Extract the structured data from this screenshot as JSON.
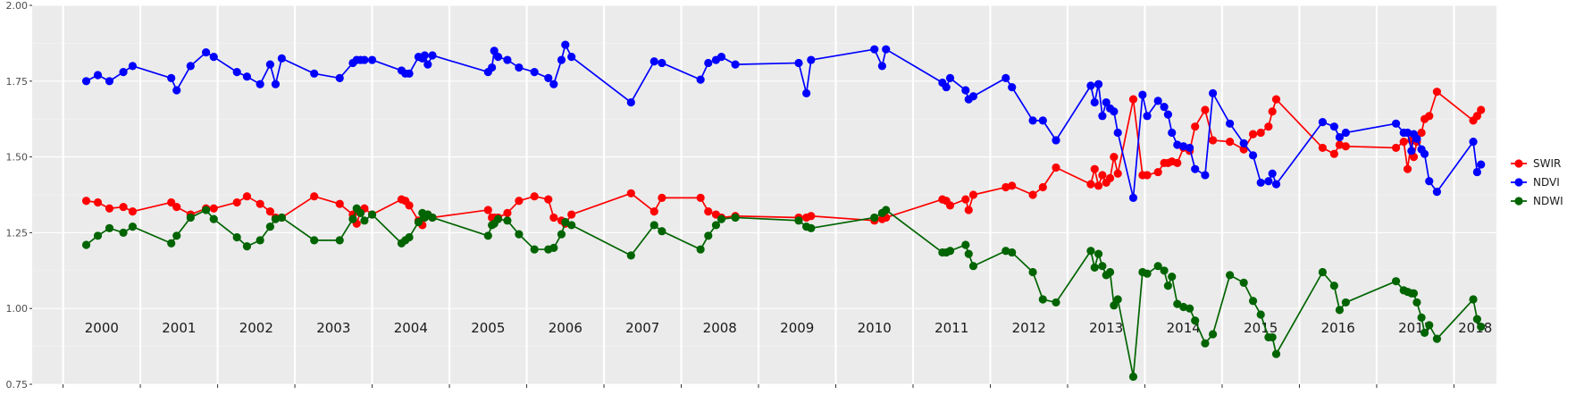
{
  "chart_data": {
    "type": "line",
    "title": "",
    "xlabel": "",
    "ylabel": "",
    "xlim": [
      1999.6,
      2018.55
    ],
    "ylim": [
      0.75,
      2.0
    ],
    "y_ticks": [
      "0.75",
      "1.00",
      "1.25",
      "1.50",
      "1.75",
      "2.00"
    ],
    "year_labels": [
      "2000",
      "2001",
      "2002",
      "2003",
      "2004",
      "2005",
      "2006",
      "2007",
      "2008",
      "2009",
      "2010",
      "2011",
      "2012",
      "2013",
      "2014",
      "2015",
      "2016",
      "2017",
      "2018"
    ],
    "grid": true,
    "legend_position": "right",
    "x": [
      2000.3,
      2000.45,
      2000.6,
      2000.78,
      2000.9,
      2001.4,
      2001.47,
      2001.65,
      2001.85,
      2001.95,
      2002.25,
      2002.38,
      2002.55,
      2002.68,
      2002.75,
      2002.83,
      2003.25,
      2003.58,
      2003.75,
      2003.8,
      2003.85,
      2003.9,
      2004.0,
      2004.38,
      2004.43,
      2004.48,
      2004.6,
      2004.65,
      2004.68,
      2004.72,
      2004.78,
      2005.5,
      2005.55,
      2005.58,
      2005.63,
      2005.75,
      2005.9,
      2006.1,
      2006.28,
      2006.35,
      2006.45,
      2006.5,
      2006.58,
      2007.35,
      2007.65,
      2007.75,
      2008.25,
      2008.35,
      2008.45,
      2008.52,
      2008.7,
      2009.52,
      2009.62,
      2009.68,
      2010.5,
      2010.6,
      2010.65,
      2011.38,
      2011.43,
      2011.48,
      2011.68,
      2011.72,
      2011.78,
      2012.2,
      2012.28,
      2012.55,
      2012.68,
      2012.85,
      2013.3,
      2013.35,
      2013.4,
      2013.45,
      2013.5,
      2013.55,
      2013.6,
      2013.65,
      2013.85,
      2013.97,
      2014.03,
      2014.17,
      2014.25,
      2014.3,
      2014.35,
      2014.42,
      2014.5,
      2014.58,
      2014.65,
      2014.78,
      2014.88,
      2015.1,
      2015.28,
      2015.4,
      2015.5,
      2015.6,
      2015.65,
      2015.7,
      2016.3,
      2016.45,
      2016.52,
      2016.6,
      2017.25,
      2017.35,
      2017.4,
      2017.45,
      2017.48,
      2017.52,
      2017.58,
      2017.62,
      2017.68,
      2017.78,
      2018.25,
      2018.3,
      2018.35
    ],
    "series": [
      {
        "name": "SWIR",
        "color": "#ff0000",
        "values": [
          1.355,
          1.35,
          1.33,
          1.335,
          1.32,
          1.35,
          1.335,
          1.31,
          1.33,
          1.33,
          1.35,
          1.37,
          1.345,
          1.32,
          1.3,
          1.3,
          1.37,
          1.345,
          1.31,
          1.28,
          1.32,
          1.33,
          1.31,
          1.36,
          1.355,
          1.34,
          1.29,
          1.275,
          1.305,
          1.31,
          1.3,
          1.325,
          1.3,
          1.3,
          1.3,
          1.315,
          1.355,
          1.37,
          1.36,
          1.3,
          1.29,
          1.28,
          1.31,
          1.38,
          1.32,
          1.365,
          1.365,
          1.32,
          1.31,
          1.3,
          1.305,
          1.3,
          1.3,
          1.305,
          1.29,
          1.295,
          1.3,
          1.36,
          1.355,
          1.34,
          1.36,
          1.325,
          1.375,
          1.4,
          1.405,
          1.375,
          1.4,
          1.465,
          1.41,
          1.46,
          1.405,
          1.44,
          1.415,
          1.43,
          1.5,
          1.445,
          1.69,
          1.44,
          1.44,
          1.45,
          1.48,
          1.48,
          1.485,
          1.48,
          1.53,
          1.52,
          1.6,
          1.655,
          1.555,
          1.55,
          1.525,
          1.575,
          1.58,
          1.6,
          1.65,
          1.69,
          1.53,
          1.51,
          1.54,
          1.535,
          1.53,
          1.55,
          1.46,
          1.555,
          1.5,
          1.55,
          1.58,
          1.625,
          1.635,
          1.715,
          1.62,
          1.635,
          1.655
        ]
      },
      {
        "name": "NDVI",
        "color": "#0000ff",
        "values": [
          1.75,
          1.77,
          1.75,
          1.78,
          1.8,
          1.76,
          1.72,
          1.8,
          1.845,
          1.83,
          1.78,
          1.765,
          1.74,
          1.805,
          1.74,
          1.825,
          1.775,
          1.76,
          1.81,
          1.82,
          1.82,
          1.82,
          1.82,
          1.785,
          1.775,
          1.775,
          1.83,
          1.825,
          1.835,
          1.805,
          1.835,
          1.78,
          1.795,
          1.85,
          1.83,
          1.82,
          1.795,
          1.78,
          1.76,
          1.74,
          1.82,
          1.87,
          1.83,
          1.68,
          1.815,
          1.81,
          1.755,
          1.81,
          1.82,
          1.83,
          1.805,
          1.81,
          1.71,
          1.82,
          1.855,
          1.8,
          1.855,
          1.745,
          1.73,
          1.76,
          1.72,
          1.69,
          1.7,
          1.76,
          1.73,
          1.62,
          1.62,
          1.555,
          1.735,
          1.68,
          1.74,
          1.635,
          1.68,
          1.66,
          1.65,
          1.58,
          1.365,
          1.705,
          1.635,
          1.685,
          1.665,
          1.64,
          1.58,
          1.54,
          1.535,
          1.53,
          1.46,
          1.44,
          1.71,
          1.61,
          1.545,
          1.505,
          1.415,
          1.42,
          1.445,
          1.41,
          1.615,
          1.6,
          1.565,
          1.58,
          1.61,
          1.58,
          1.58,
          1.52,
          1.575,
          1.56,
          1.525,
          1.51,
          1.42,
          1.385,
          1.55,
          1.45,
          1.475
        ]
      },
      {
        "name": "NDWI",
        "color": "#006400",
        "values": [
          1.21,
          1.24,
          1.265,
          1.25,
          1.27,
          1.215,
          1.24,
          1.3,
          1.325,
          1.295,
          1.235,
          1.205,
          1.225,
          1.27,
          1.295,
          1.3,
          1.225,
          1.225,
          1.295,
          1.33,
          1.315,
          1.29,
          1.31,
          1.215,
          1.225,
          1.235,
          1.285,
          1.315,
          1.3,
          1.31,
          1.3,
          1.24,
          1.275,
          1.28,
          1.295,
          1.29,
          1.245,
          1.195,
          1.195,
          1.2,
          1.245,
          1.285,
          1.275,
          1.175,
          1.275,
          1.255,
          1.195,
          1.24,
          1.275,
          1.295,
          1.3,
          1.29,
          1.27,
          1.265,
          1.3,
          1.315,
          1.325,
          1.185,
          1.185,
          1.19,
          1.21,
          1.18,
          1.14,
          1.19,
          1.185,
          1.12,
          1.03,
          1.02,
          1.19,
          1.135,
          1.18,
          1.14,
          1.11,
          1.12,
          1.01,
          1.03,
          0.775,
          1.12,
          1.115,
          1.14,
          1.125,
          1.075,
          1.105,
          1.015,
          1.005,
          1.0,
          0.96,
          0.885,
          0.915,
          1.11,
          1.085,
          1.025,
          0.98,
          0.905,
          0.905,
          0.85,
          1.12,
          1.075,
          0.995,
          1.02,
          1.09,
          1.06,
          1.055,
          1.05,
          1.05,
          1.02,
          0.97,
          0.92,
          0.945,
          0.9,
          1.03,
          0.965,
          0.94
        ]
      }
    ]
  }
}
